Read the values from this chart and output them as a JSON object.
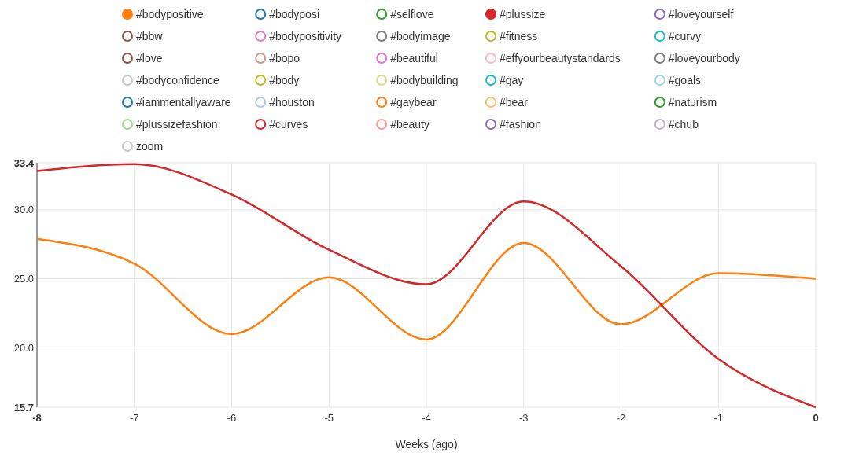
{
  "chart_data": {
    "type": "line",
    "xlabel": "Weeks (ago)",
    "x": [
      -8,
      -7,
      -6,
      -5,
      -4,
      -3,
      -2,
      -1,
      0
    ],
    "xlim": [
      -8,
      0
    ],
    "xticks": [
      -8,
      -7,
      -6,
      -5,
      -4,
      -3,
      -2,
      -1,
      0
    ],
    "ylim": [
      15.7,
      33.4
    ],
    "yticks": [
      15.7,
      {
        "value": 20,
        "label": "20.0"
      },
      {
        "value": 25,
        "label": "25.0"
      },
      {
        "value": 30,
        "label": "30.0"
      },
      33.4
    ],
    "grid": true,
    "legend": "top",
    "marker": "none",
    "line_style": "solid",
    "annotations": [
      "zoom"
    ],
    "series": [
      {
        "name": "#bodypositive",
        "color": "#ff7f0e",
        "values": [
          27.9,
          26.1,
          21.0,
          25.1,
          20.6,
          27.6,
          21.7,
          25.4,
          25.0
        ]
      },
      {
        "name": "#bodyposi",
        "color": "#1f77b4",
        "values": [
          null,
          null,
          null,
          null,
          null,
          null,
          null,
          null,
          null
        ]
      },
      {
        "name": "#selflove",
        "color": "#2ca02c",
        "values": [
          null,
          null,
          null,
          null,
          null,
          null,
          null,
          null,
          null
        ]
      },
      {
        "name": "#plussize",
        "color": "#d62728",
        "values": [
          32.8,
          33.3,
          31.1,
          27.1,
          24.6,
          30.6,
          25.9,
          19.2,
          15.7
        ]
      },
      {
        "name": "#loveyourself",
        "color": "#9467bd",
        "values": [
          null,
          null,
          null,
          null,
          null,
          null,
          null,
          null,
          null
        ]
      },
      {
        "name": "#bbw",
        "color": "#8c564b",
        "values": [
          null,
          null,
          null,
          null,
          null,
          null,
          null,
          null,
          null
        ]
      },
      {
        "name": "#bodypositivity",
        "color": "#e377c2",
        "values": [
          null,
          null,
          null,
          null,
          null,
          null,
          null,
          null,
          null
        ]
      },
      {
        "name": "#bodyimage",
        "color": "#7f7f7f",
        "values": [
          null,
          null,
          null,
          null,
          null,
          null,
          null,
          null,
          null
        ]
      },
      {
        "name": "#fitness",
        "color": "#bcbd22",
        "values": [
          null,
          null,
          null,
          null,
          null,
          null,
          null,
          null,
          null
        ]
      },
      {
        "name": "#curvy",
        "color": "#17becf",
        "values": [
          null,
          null,
          null,
          null,
          null,
          null,
          null,
          null,
          null
        ]
      },
      {
        "name": "#love",
        "color": "#8c564b",
        "values": [
          null,
          null,
          null,
          null,
          null,
          null,
          null,
          null,
          null
        ]
      },
      {
        "name": "#bopo",
        "color": "#c49c94",
        "values": [
          null,
          null,
          null,
          null,
          null,
          null,
          null,
          null,
          null
        ]
      },
      {
        "name": "#beautiful",
        "color": "#e377c2",
        "values": [
          null,
          null,
          null,
          null,
          null,
          null,
          null,
          null,
          null
        ]
      },
      {
        "name": "#effyourbeautystandards",
        "color": "#f7b6d2",
        "values": [
          null,
          null,
          null,
          null,
          null,
          null,
          null,
          null,
          null
        ]
      },
      {
        "name": "#loveyourbody",
        "color": "#7f7f7f",
        "values": [
          null,
          null,
          null,
          null,
          null,
          null,
          null,
          null,
          null
        ]
      },
      {
        "name": "#bodyconfidence",
        "color": "#c7c7c7",
        "values": [
          null,
          null,
          null,
          null,
          null,
          null,
          null,
          null,
          null
        ]
      },
      {
        "name": "#body",
        "color": "#bcbd22",
        "values": [
          null,
          null,
          null,
          null,
          null,
          null,
          null,
          null,
          null
        ]
      },
      {
        "name": "#bodybuilding",
        "color": "#dbdb8d",
        "values": [
          null,
          null,
          null,
          null,
          null,
          null,
          null,
          null,
          null
        ]
      },
      {
        "name": "#gay",
        "color": "#17becf",
        "values": [
          null,
          null,
          null,
          null,
          null,
          null,
          null,
          null,
          null
        ]
      },
      {
        "name": "#goals",
        "color": "#9edae5",
        "values": [
          null,
          null,
          null,
          null,
          null,
          null,
          null,
          null,
          null
        ]
      },
      {
        "name": "#iammentallyaware",
        "color": "#1f77b4",
        "values": [
          null,
          null,
          null,
          null,
          null,
          null,
          null,
          null,
          null
        ]
      },
      {
        "name": "#houston",
        "color": "#aec7e8",
        "values": [
          null,
          null,
          null,
          null,
          null,
          null,
          null,
          null,
          null
        ]
      },
      {
        "name": "#gaybear",
        "color": "#ff7f0e",
        "values": [
          null,
          null,
          null,
          null,
          null,
          null,
          null,
          null,
          null
        ]
      },
      {
        "name": "#bear",
        "color": "#ffbb78",
        "values": [
          null,
          null,
          null,
          null,
          null,
          null,
          null,
          null,
          null
        ]
      },
      {
        "name": "#naturism",
        "color": "#2ca02c",
        "values": [
          null,
          null,
          null,
          null,
          null,
          null,
          null,
          null,
          null
        ]
      },
      {
        "name": "#plussizefashion",
        "color": "#98df8a",
        "values": [
          null,
          null,
          null,
          null,
          null,
          null,
          null,
          null,
          null
        ]
      },
      {
        "name": "#curves",
        "color": "#d62728",
        "values": [
          null,
          null,
          null,
          null,
          null,
          null,
          null,
          null,
          null
        ]
      },
      {
        "name": "#beauty",
        "color": "#ff9896",
        "values": [
          null,
          null,
          null,
          null,
          null,
          null,
          null,
          null,
          null
        ]
      },
      {
        "name": "#fashion",
        "color": "#9467bd",
        "values": [
          null,
          null,
          null,
          null,
          null,
          null,
          null,
          null,
          null
        ]
      },
      {
        "name": "#chub",
        "color": "#c5b0d5",
        "values": [
          null,
          null,
          null,
          null,
          null,
          null,
          null,
          null,
          null
        ]
      }
    ]
  }
}
